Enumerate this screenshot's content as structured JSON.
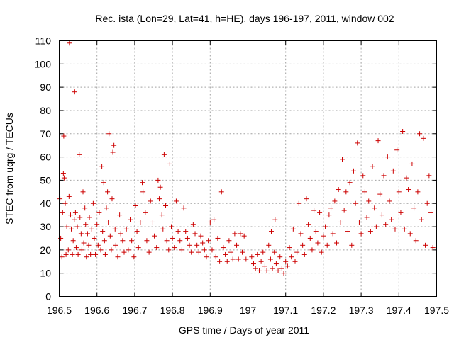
{
  "chart_data": {
    "type": "scatter",
    "title": "Rec. ista (Lon=29, Lat=41, h=HE), days 196-197, 2011, window 002",
    "xlabel": "GPS time / Days of year 2011",
    "ylabel": "STEC from uqrg / TECUs",
    "xlim": [
      196.5,
      197.5
    ],
    "ylim": [
      0,
      110
    ],
    "xticks": [
      "196.5",
      "196.6",
      "196.7",
      "196.8",
      "196.9",
      "197",
      "197.1",
      "197.2",
      "197.3",
      "197.4",
      "197.5"
    ],
    "yticks": [
      "0",
      "10",
      "20",
      "30",
      "40",
      "50",
      "60",
      "70",
      "80",
      "90",
      "100",
      "110"
    ],
    "grid": true,
    "marker": "+",
    "color": "#cc0000",
    "series": [
      {
        "name": "STEC",
        "points": [
          [
            196.502,
            42
          ],
          [
            196.504,
            25
          ],
          [
            196.507,
            17
          ],
          [
            196.509,
            36
          ],
          [
            196.511,
            53
          ],
          [
            196.512,
            69
          ],
          [
            196.513,
            51
          ],
          [
            196.516,
            40
          ],
          [
            196.518,
            18
          ],
          [
            196.52,
            30
          ],
          [
            196.524,
            20
          ],
          [
            196.526,
            43
          ],
          [
            196.527,
            109
          ],
          [
            196.53,
            35
          ],
          [
            196.532,
            29
          ],
          [
            196.535,
            18
          ],
          [
            196.537,
            24
          ],
          [
            196.54,
            33
          ],
          [
            196.541,
            88
          ],
          [
            196.543,
            36
          ],
          [
            196.545,
            21
          ],
          [
            196.548,
            30
          ],
          [
            196.55,
            18
          ],
          [
            196.553,
            61
          ],
          [
            196.555,
            34
          ],
          [
            196.558,
            27
          ],
          [
            196.56,
            20
          ],
          [
            196.563,
            45
          ],
          [
            196.565,
            23
          ],
          [
            196.568,
            38
          ],
          [
            196.57,
            31
          ],
          [
            196.572,
            17
          ],
          [
            196.575,
            27
          ],
          [
            196.578,
            22
          ],
          [
            196.58,
            34
          ],
          [
            196.583,
            18
          ],
          [
            196.586,
            29
          ],
          [
            196.59,
            40
          ],
          [
            196.593,
            25
          ],
          [
            196.596,
            18
          ],
          [
            196.6,
            31
          ],
          [
            196.603,
            22
          ],
          [
            196.606,
            36
          ],
          [
            196.61,
            20
          ],
          [
            196.613,
            56
          ],
          [
            196.615,
            28
          ],
          [
            196.618,
            49
          ],
          [
            196.62,
            24
          ],
          [
            196.622,
            18
          ],
          [
            196.625,
            38
          ],
          [
            196.628,
            45
          ],
          [
            196.63,
            32
          ],
          [
            196.632,
            70
          ],
          [
            196.635,
            26
          ],
          [
            196.638,
            20
          ],
          [
            196.64,
            42
          ],
          [
            196.642,
            62
          ],
          [
            196.645,
            65
          ],
          [
            196.648,
            29
          ],
          [
            196.65,
            22
          ],
          [
            196.655,
            17
          ],
          [
            196.66,
            35
          ],
          [
            196.663,
            27
          ],
          [
            196.668,
            24
          ],
          [
            196.672,
            19
          ],
          [
            196.678,
            29
          ],
          [
            196.683,
            20
          ],
          [
            196.688,
            33
          ],
          [
            196.692,
            24
          ],
          [
            196.698,
            17
          ],
          [
            196.702,
            39
          ],
          [
            196.706,
            28
          ],
          [
            196.71,
            21
          ],
          [
            196.715,
            32
          ],
          [
            196.72,
            49
          ],
          [
            196.722,
            45
          ],
          [
            196.728,
            36
          ],
          [
            196.732,
            24
          ],
          [
            196.738,
            19
          ],
          [
            196.742,
            41
          ],
          [
            196.748,
            32
          ],
          [
            196.752,
            26
          ],
          [
            196.758,
            21
          ],
          [
            196.762,
            50
          ],
          [
            196.765,
            42
          ],
          [
            196.768,
            47
          ],
          [
            196.772,
            35
          ],
          [
            196.775,
            29
          ],
          [
            196.778,
            61
          ],
          [
            196.782,
            39
          ],
          [
            196.785,
            24
          ],
          [
            196.79,
            20
          ],
          [
            196.793,
            57
          ],
          [
            196.797,
            30
          ],
          [
            196.8,
            25
          ],
          [
            196.805,
            21
          ],
          [
            196.81,
            41
          ],
          [
            196.815,
            28
          ],
          [
            196.82,
            24
          ],
          [
            196.825,
            20
          ],
          [
            196.83,
            38
          ],
          [
            196.835,
            28
          ],
          [
            196.84,
            25
          ],
          [
            196.845,
            22
          ],
          [
            196.85,
            19
          ],
          [
            196.855,
            31
          ],
          [
            196.86,
            27
          ],
          [
            196.865,
            22
          ],
          [
            196.87,
            19
          ],
          [
            196.875,
            26
          ],
          [
            196.88,
            23
          ],
          [
            196.885,
            20
          ],
          [
            196.89,
            17
          ],
          [
            196.895,
            24
          ],
          [
            196.9,
            32
          ],
          [
            196.905,
            20
          ],
          [
            196.91,
            33
          ],
          [
            196.915,
            17
          ],
          [
            196.92,
            25
          ],
          [
            196.925,
            15
          ],
          [
            196.93,
            45
          ],
          [
            196.935,
            21
          ],
          [
            196.94,
            18
          ],
          [
            196.945,
            15
          ],
          [
            196.95,
            24
          ],
          [
            196.955,
            19
          ],
          [
            196.96,
            16
          ],
          [
            196.965,
            27
          ],
          [
            196.97,
            22
          ],
          [
            196.975,
            16
          ],
          [
            196.98,
            27
          ],
          [
            196.985,
            19
          ],
          [
            196.99,
            26
          ],
          [
            196.995,
            16
          ],
          [
            197.01,
            17
          ],
          [
            197.015,
            14
          ],
          [
            197.02,
            12
          ],
          [
            197.025,
            18
          ],
          [
            197.03,
            11
          ],
          [
            197.035,
            15
          ],
          [
            197.04,
            19
          ],
          [
            197.045,
            13
          ],
          [
            197.05,
            11
          ],
          [
            197.055,
            22
          ],
          [
            197.06,
            16
          ],
          [
            197.062,
            28
          ],
          [
            197.065,
            12
          ],
          [
            197.07,
            19
          ],
          [
            197.072,
            33
          ],
          [
            197.075,
            14
          ],
          [
            197.08,
            11
          ],
          [
            197.085,
            17
          ],
          [
            197.09,
            12
          ],
          [
            197.095,
            10
          ],
          [
            197.1,
            15
          ],
          [
            197.105,
            13
          ],
          [
            197.11,
            21
          ],
          [
            197.115,
            17
          ],
          [
            197.12,
            29
          ],
          [
            197.125,
            15
          ],
          [
            197.13,
            19
          ],
          [
            197.135,
            40
          ],
          [
            197.14,
            27
          ],
          [
            197.145,
            22
          ],
          [
            197.15,
            18
          ],
          [
            197.155,
            42
          ],
          [
            197.16,
            31
          ],
          [
            197.165,
            25
          ],
          [
            197.17,
            20
          ],
          [
            197.175,
            37
          ],
          [
            197.18,
            28
          ],
          [
            197.185,
            23
          ],
          [
            197.19,
            36
          ],
          [
            197.195,
            19
          ],
          [
            197.2,
            26
          ],
          [
            197.205,
            30
          ],
          [
            197.21,
            22
          ],
          [
            197.215,
            35
          ],
          [
            197.22,
            38
          ],
          [
            197.225,
            27
          ],
          [
            197.23,
            41
          ],
          [
            197.235,
            23
          ],
          [
            197.24,
            46
          ],
          [
            197.245,
            32
          ],
          [
            197.25,
            59
          ],
          [
            197.255,
            37
          ],
          [
            197.26,
            45
          ],
          [
            197.265,
            28
          ],
          [
            197.27,
            49
          ],
          [
            197.275,
            22
          ],
          [
            197.28,
            54
          ],
          [
            197.285,
            40
          ],
          [
            197.29,
            66
          ],
          [
            197.295,
            32
          ],
          [
            197.3,
            27
          ],
          [
            197.305,
            52
          ],
          [
            197.31,
            45
          ],
          [
            197.315,
            34
          ],
          [
            197.32,
            41
          ],
          [
            197.325,
            28
          ],
          [
            197.33,
            56
          ],
          [
            197.335,
            38
          ],
          [
            197.34,
            30
          ],
          [
            197.345,
            67
          ],
          [
            197.35,
            44
          ],
          [
            197.355,
            35
          ],
          [
            197.36,
            52
          ],
          [
            197.365,
            31
          ],
          [
            197.37,
            60
          ],
          [
            197.375,
            41
          ],
          [
            197.38,
            33
          ],
          [
            197.385,
            54
          ],
          [
            197.39,
            29
          ],
          [
            197.395,
            63
          ],
          [
            197.4,
            45
          ],
          [
            197.405,
            36
          ],
          [
            197.41,
            71
          ],
          [
            197.415,
            29
          ],
          [
            197.42,
            51
          ],
          [
            197.425,
            46
          ],
          [
            197.43,
            27
          ],
          [
            197.435,
            57
          ],
          [
            197.44,
            38
          ],
          [
            197.445,
            24
          ],
          [
            197.45,
            45
          ],
          [
            197.455,
            70
          ],
          [
            197.46,
            33
          ],
          [
            197.465,
            68
          ],
          [
            197.47,
            22
          ],
          [
            197.475,
            40
          ],
          [
            197.48,
            52
          ],
          [
            197.485,
            36
          ],
          [
            197.49,
            21
          ]
        ]
      }
    ]
  }
}
